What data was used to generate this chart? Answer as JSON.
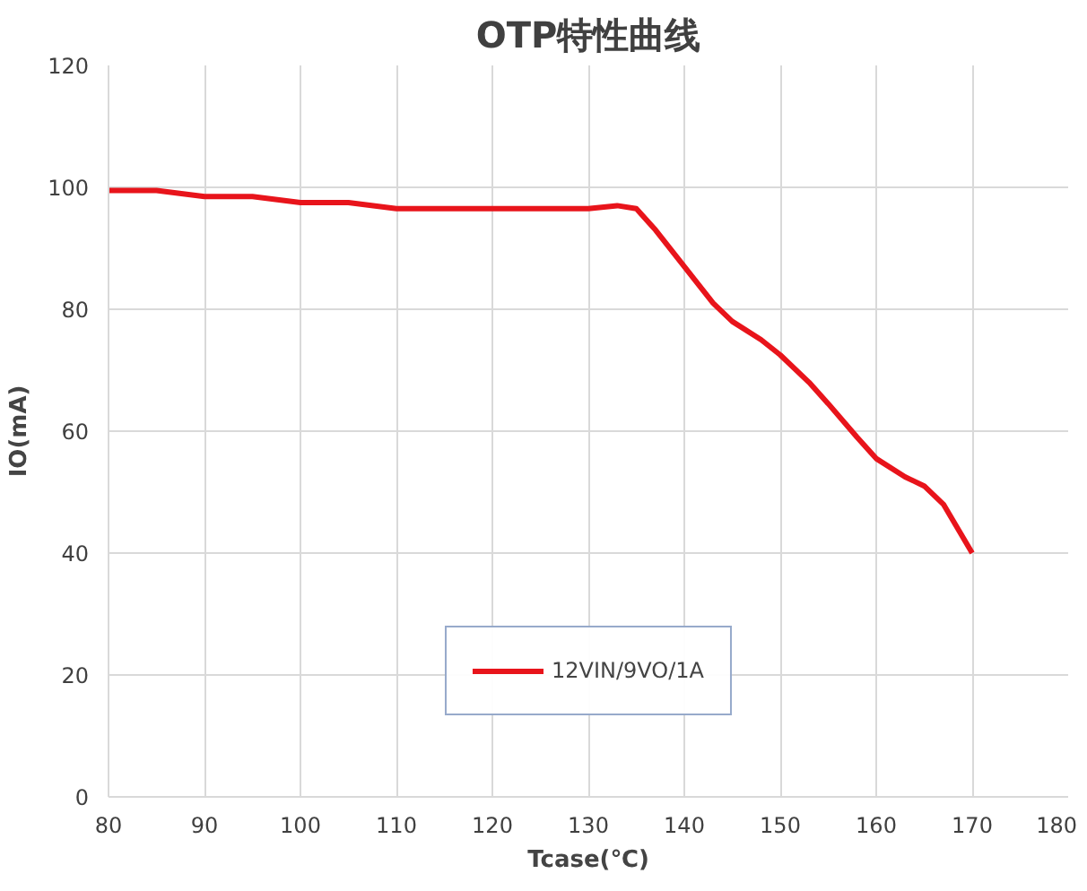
{
  "chart_data": {
    "type": "line",
    "title": "OTP特性曲线",
    "xlabel": "Tcase(℃)",
    "ylabel": "IO(mA)",
    "x": [
      80,
      85,
      90,
      95,
      100,
      105,
      110,
      115,
      120,
      125,
      130,
      133,
      135,
      137,
      140,
      143,
      145,
      148,
      150,
      153,
      155,
      158,
      160,
      163,
      165,
      167,
      170
    ],
    "series": [
      {
        "name": "12VIN/9VO/1A",
        "color": "#e8141b",
        "values": [
          99.5,
          99.5,
          98.5,
          98.5,
          97.5,
          97.5,
          96.5,
          96.5,
          96.5,
          96.5,
          96.5,
          97,
          96.5,
          93,
          87,
          81,
          78,
          75,
          72.5,
          68,
          64.5,
          59,
          55.5,
          52.5,
          51,
          48,
          40
        ]
      }
    ],
    "xlim": [
      80,
      180
    ],
    "xticks": [
      80,
      90,
      100,
      110,
      120,
      130,
      140,
      150,
      160,
      170,
      180
    ],
    "ylim": [
      0,
      120
    ],
    "yticks": [
      0,
      20,
      40,
      60,
      80,
      100,
      120
    ],
    "grid": true,
    "legend": "bottom",
    "marker": "none",
    "line_style": "solid"
  }
}
